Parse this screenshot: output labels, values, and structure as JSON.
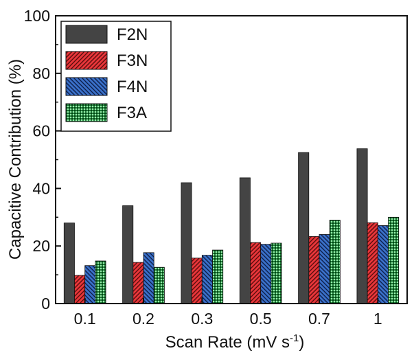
{
  "chart_data": {
    "type": "bar",
    "categories": [
      "0.1",
      "0.2",
      "0.3",
      "0.5",
      "0.7",
      "1"
    ],
    "series": [
      {
        "name": "F2N",
        "values": [
          28,
          34,
          42,
          43.7,
          52.5,
          53.8
        ],
        "color": "#444444",
        "pattern": "solid"
      },
      {
        "name": "F3N",
        "values": [
          9.8,
          14.3,
          15.8,
          21.2,
          23.3,
          28.1
        ],
        "color": "#e8363a",
        "pattern": "diagonal-right"
      },
      {
        "name": "F4N",
        "values": [
          13.2,
          17.7,
          16.8,
          20.6,
          24,
          27.1
        ],
        "color": "#3a70c8",
        "pattern": "diagonal-left"
      },
      {
        "name": "F3A",
        "values": [
          14.8,
          12.6,
          18.6,
          21,
          29,
          30
        ],
        "color": "#1d8a3a",
        "pattern": "dots"
      }
    ],
    "xlabel_main": "Scan Rate (mV s",
    "xlabel_sup": "-1",
    "xlabel_end": ")",
    "ylabel": "Capacitive Contribution (%)",
    "ylim": [
      0,
      100
    ],
    "yticks": [
      "0",
      "20",
      "40",
      "60",
      "80",
      "100"
    ],
    "legend_position": "top-left",
    "grid": false
  }
}
